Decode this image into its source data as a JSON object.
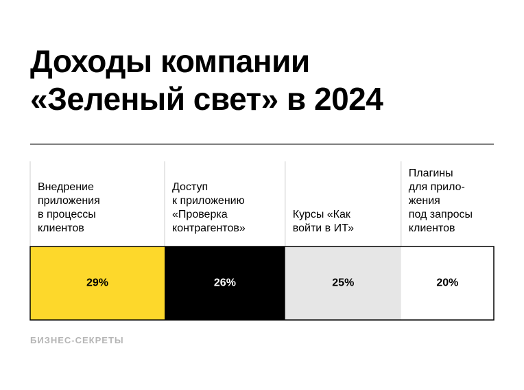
{
  "chart_data": {
    "type": "stacked-bar-100",
    "title": "Доходы компании\n«Зеленый свет» в 2024",
    "categories": [
      "Внедрение\nприложения\nв процессы\nклиентов",
      "Доступ\nк приложению\n«Проверка\nконтрагентов»",
      "Курсы «Как\nвойти в ИТ»",
      "Плагины\nдля прило-\nжения\nпод запросы\nклиентов"
    ],
    "values": [
      29,
      26,
      25,
      20
    ],
    "value_labels": [
      "29%",
      "26%",
      "25%",
      "20%"
    ],
    "colors": [
      "#fdd82b",
      "#000000",
      "#e6e6e6",
      "#ffffff"
    ],
    "xlim": [
      0,
      100
    ],
    "source": "БИЗНЕС-СЕКРЕТЫ"
  }
}
